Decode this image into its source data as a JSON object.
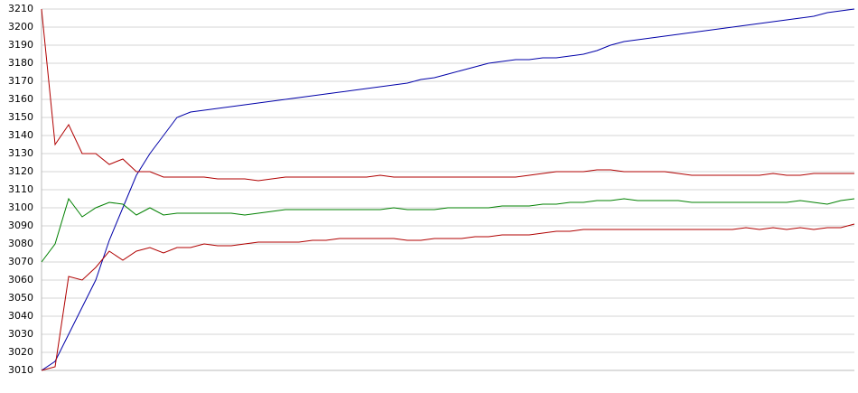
{
  "chart_data": {
    "type": "line",
    "ylim": [
      3010,
      3210
    ],
    "yticks": [
      3010,
      3020,
      3030,
      3040,
      3050,
      3060,
      3070,
      3080,
      3090,
      3100,
      3110,
      3120,
      3130,
      3140,
      3150,
      3160,
      3170,
      3180,
      3190,
      3200,
      3210
    ],
    "grid": true,
    "series": [
      {
        "color": "#0000a8",
        "values": [
          3010,
          3015,
          3030,
          3045,
          3060,
          3082,
          3100,
          3118,
          3130,
          3140,
          3150,
          3153,
          3154,
          3155,
          3156,
          3157,
          3158,
          3159,
          3160,
          3161,
          3162,
          3163,
          3164,
          3165,
          3166,
          3167,
          3168,
          3169,
          3171,
          3172,
          3174,
          3176,
          3178,
          3180,
          3181,
          3182,
          3182,
          3183,
          3183,
          3184,
          3185,
          3187,
          3190,
          3192,
          3193,
          3194,
          3195,
          3196,
          3197,
          3198,
          3199,
          3200,
          3201,
          3202,
          3203,
          3204,
          3205,
          3206,
          3208,
          3209,
          3210
        ]
      },
      {
        "color": "#b00000",
        "values": [
          3210,
          3135,
          3146,
          3130,
          3130,
          3124,
          3127,
          3120,
          3120,
          3117,
          3117,
          3117,
          3117,
          3116,
          3116,
          3116,
          3115,
          3116,
          3117,
          3117,
          3117,
          3117,
          3117,
          3117,
          3117,
          3118,
          3117,
          3117,
          3117,
          3117,
          3117,
          3117,
          3117,
          3117,
          3117,
          3117,
          3118,
          3119,
          3120,
          3120,
          3120,
          3121,
          3121,
          3120,
          3120,
          3120,
          3120,
          3119,
          3118,
          3118,
          3118,
          3118,
          3118,
          3118,
          3119,
          3118,
          3118,
          3119,
          3119,
          3119,
          3119
        ]
      },
      {
        "color": "#008000",
        "values": [
          3070,
          3080,
          3105,
          3095,
          3100,
          3103,
          3102,
          3096,
          3100,
          3096,
          3097,
          3097,
          3097,
          3097,
          3097,
          3096,
          3097,
          3098,
          3099,
          3099,
          3099,
          3099,
          3099,
          3099,
          3099,
          3099,
          3100,
          3099,
          3099,
          3099,
          3100,
          3100,
          3100,
          3100,
          3101,
          3101,
          3101,
          3102,
          3102,
          3103,
          3103,
          3104,
          3104,
          3105,
          3104,
          3104,
          3104,
          3104,
          3103,
          3103,
          3103,
          3103,
          3103,
          3103,
          3103,
          3103,
          3104,
          3103,
          3102,
          3104,
          3105
        ]
      },
      {
        "color": "#b00000",
        "values": [
          3010,
          3012,
          3062,
          3060,
          3067,
          3076,
          3071,
          3076,
          3078,
          3075,
          3078,
          3078,
          3080,
          3079,
          3079,
          3080,
          3081,
          3081,
          3081,
          3081,
          3082,
          3082,
          3083,
          3083,
          3083,
          3083,
          3083,
          3082,
          3082,
          3083,
          3083,
          3083,
          3084,
          3084,
          3085,
          3085,
          3085,
          3086,
          3087,
          3087,
          3088,
          3088,
          3088,
          3088,
          3088,
          3088,
          3088,
          3088,
          3088,
          3088,
          3088,
          3088,
          3089,
          3088,
          3089,
          3088,
          3089,
          3088,
          3089,
          3089,
          3091
        ]
      }
    ]
  }
}
